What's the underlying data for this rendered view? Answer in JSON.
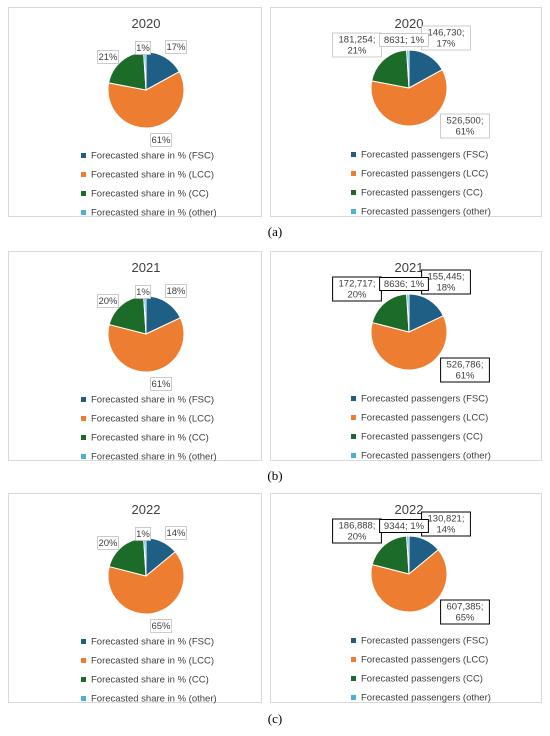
{
  "colors": {
    "FSC": "#1f5f86",
    "LCC": "#ed7d31",
    "CC": "#1d6b28",
    "other": "#4fb0d6"
  },
  "captions": [
    "(a)",
    "(b)",
    "(c)"
  ],
  "chart_data": [
    {
      "type": "pie",
      "title": "2020",
      "categories": [
        "Forecasted share in % (FSC)",
        "Forecasted share in % (LCC)",
        "Forecasted share in % (CC)",
        "Forecasted share in % (other)"
      ],
      "values": [
        17,
        61,
        21,
        1
      ],
      "data_labels": [
        "17%",
        "61%",
        "21%",
        "1%"
      ],
      "legend": "bottom"
    },
    {
      "type": "pie",
      "title": "2020",
      "categories": [
        "Forecasted passengers (FSC)",
        "Forecasted passengers (LCC)",
        "Forecasted passengers (CC)",
        "Forecasted passengers (other)"
      ],
      "values": [
        146730,
        526500,
        181254,
        8631
      ],
      "data_labels": [
        [
          "146,730;",
          "17%"
        ],
        [
          "526,500;",
          "61%"
        ],
        [
          "181,254;",
          "21%"
        ],
        [
          "8631; 1%"
        ]
      ],
      "legend": "bottom"
    },
    {
      "type": "pie",
      "title": "2021",
      "categories": [
        "Forecasted share in % (FSC)",
        "Forecasted share in % (LCC)",
        "Forecasted share in % (CC)",
        "Forecasted share in % (other)"
      ],
      "values": [
        18,
        61,
        20,
        1
      ],
      "data_labels": [
        "18%",
        "61%",
        "20%",
        "1%"
      ],
      "legend": "bottom"
    },
    {
      "type": "pie",
      "title": "2021",
      "categories": [
        "Forecasted passengers (FSC)",
        "Forecasted passengers (LCC)",
        "Forecasted passengers (CC)",
        "Forecasted passengers (other)"
      ],
      "values": [
        155445,
        526786,
        172717,
        8636
      ],
      "data_labels": [
        [
          "155,445;",
          "18%"
        ],
        [
          "526,786;",
          "61%"
        ],
        [
          "172,717;",
          "20%"
        ],
        [
          "8636; 1%"
        ]
      ],
      "legend": "bottom"
    },
    {
      "type": "pie",
      "title": "2022",
      "categories": [
        "Forecasted share in % (FSC)",
        "Forecasted share in % (LCC)",
        "Forecasted share in % (CC)",
        "Forecasted share in % (other)"
      ],
      "values": [
        14,
        65,
        20,
        1
      ],
      "data_labels": [
        "14%",
        "65%",
        "20%",
        "1%"
      ],
      "legend": "bottom"
    },
    {
      "type": "pie",
      "title": "2022",
      "categories": [
        "Forecasted passengers (FSC)",
        "Forecasted passengers (LCC)",
        "Forecasted passengers (CC)",
        "Forecasted passengers (other)"
      ],
      "values": [
        130821,
        607385,
        186888,
        9344
      ],
      "data_labels": [
        [
          "130,821;",
          "14%"
        ],
        [
          "607,385;",
          "65%"
        ],
        [
          "186,888;",
          "20%"
        ],
        [
          "9344; 1%"
        ]
      ],
      "legend": "bottom"
    }
  ]
}
